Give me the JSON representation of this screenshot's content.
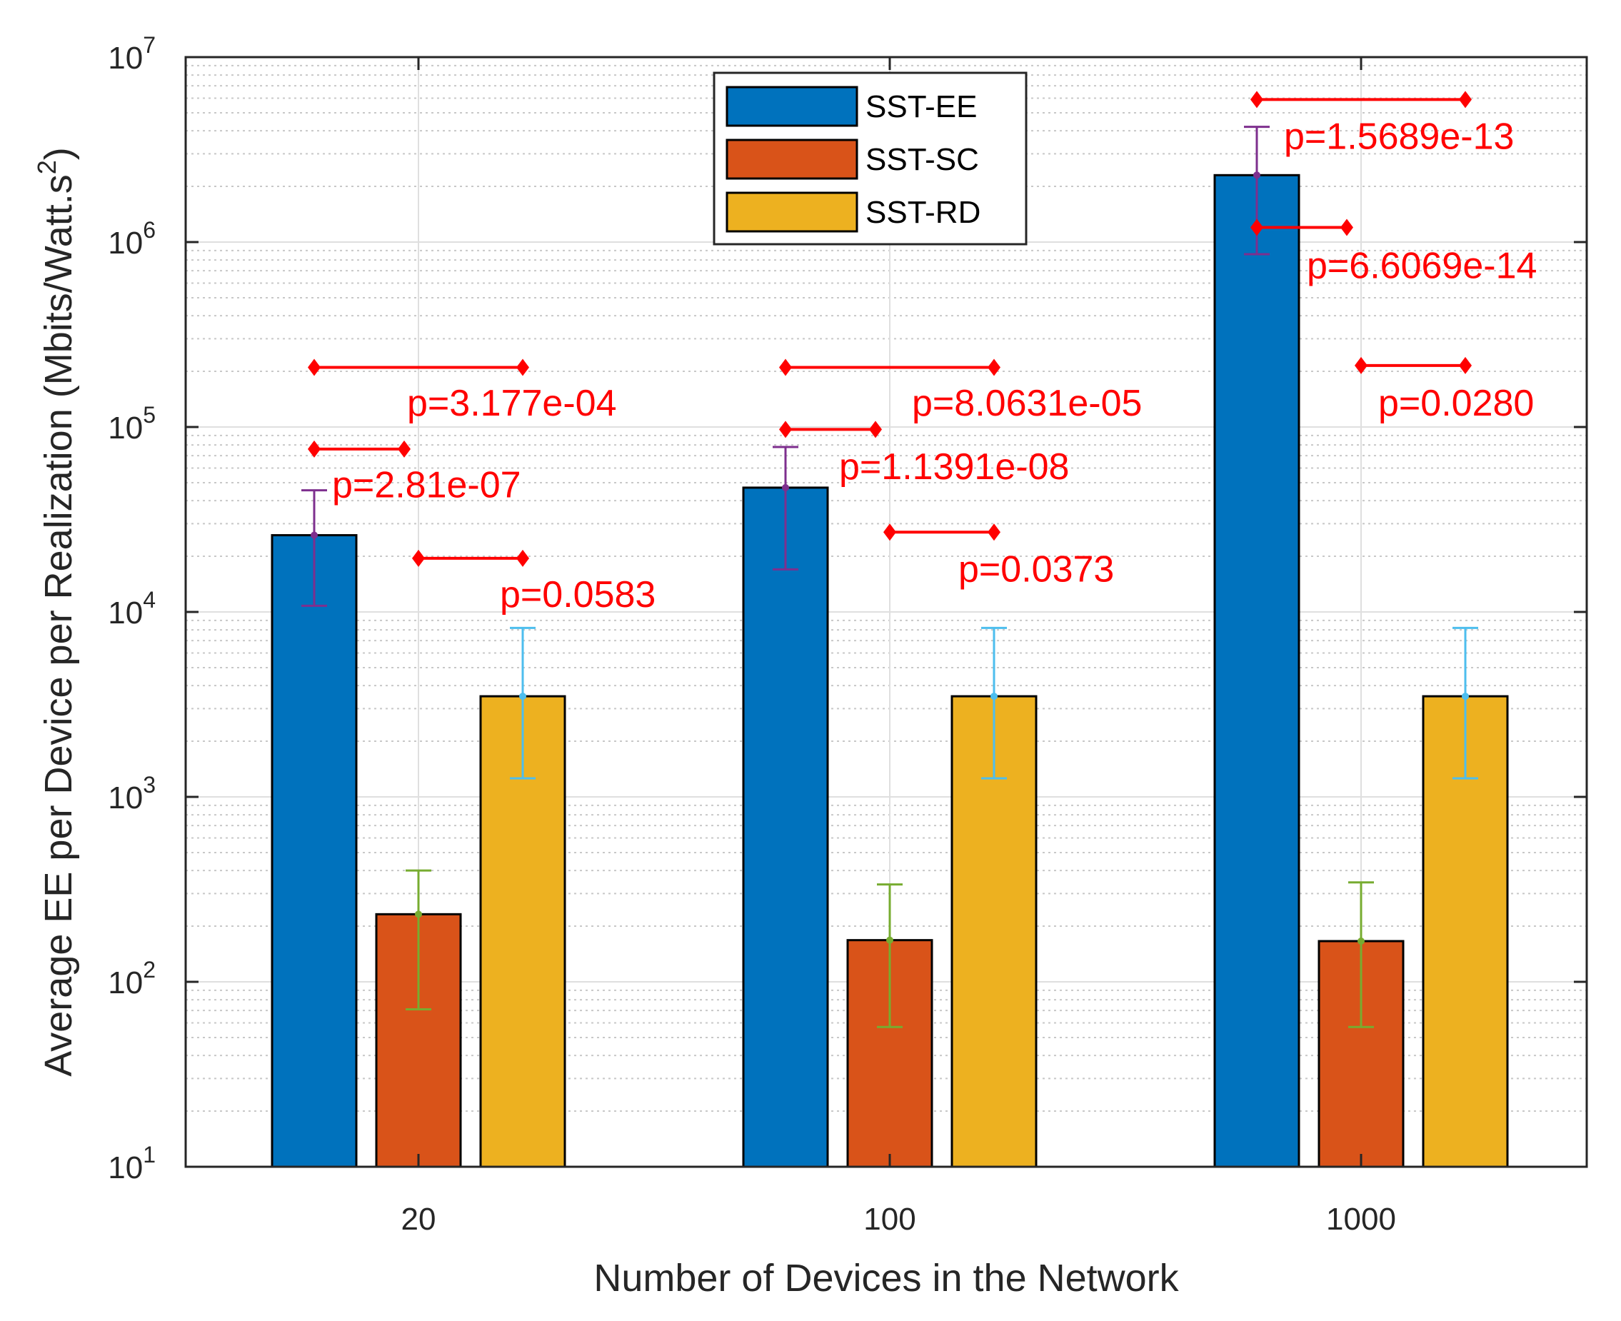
{
  "chart_data": {
    "type": "bar",
    "title": "",
    "xlabel": "Number of Devices in the Network",
    "ylabel": "Average EE per Device per Realization (Mbits/Watt.s",
    "ylabel_superscript": "2",
    "ylabel_close": ")",
    "yscale": "log",
    "ylim": [
      10,
      10000000
    ],
    "y_ticks": [
      {
        "mantissa": "10",
        "exp": "1",
        "value": 10
      },
      {
        "mantissa": "10",
        "exp": "2",
        "value": 100
      },
      {
        "mantissa": "10",
        "exp": "3",
        "value": 1000
      },
      {
        "mantissa": "10",
        "exp": "4",
        "value": 10000
      },
      {
        "mantissa": "10",
        "exp": "5",
        "value": 100000
      },
      {
        "mantissa": "10",
        "exp": "6",
        "value": 1000000
      },
      {
        "mantissa": "10",
        "exp": "7",
        "value": 10000000
      }
    ],
    "categories": [
      "20",
      "100",
      "1000"
    ],
    "legend_position": "top-center",
    "series": [
      {
        "name": "SST-EE",
        "color": "#0072BD",
        "error_color": "#7E2F8E",
        "values": [
          26000,
          47000,
          2300000
        ],
        "err_low": [
          10800,
          17000,
          860000
        ],
        "err_high": [
          45500,
          78000,
          4200000
        ]
      },
      {
        "name": "SST-SC",
        "color": "#D95319",
        "error_color": "#77AC30",
        "values": [
          232,
          168,
          166
        ],
        "err_low": [
          71,
          57,
          57
        ],
        "err_high": [
          400,
          336,
          345
        ]
      },
      {
        "name": "SST-RD",
        "color": "#EDB120",
        "error_color": "#4DBEEE",
        "values": [
          3500,
          3500,
          3500
        ],
        "err_low": [
          1260,
          1260,
          1260
        ],
        "err_high": [
          8200,
          8200,
          8200
        ]
      }
    ],
    "significance": [
      {
        "group": 0,
        "from": 0,
        "to": 2,
        "y": 210000,
        "label": "p=3.177e-04",
        "label_y": 130000
      },
      {
        "group": 0,
        "from": 0,
        "to": 1,
        "y": 76000,
        "label": "p=2.81e-07",
        "label_y": 47000
      },
      {
        "group": 0,
        "from": 1,
        "to": 2,
        "y": 19500,
        "label": "p=0.0583",
        "label_y": 12000
      },
      {
        "group": 1,
        "from": 0,
        "to": 2,
        "y": 210000,
        "label": "p=8.0631e-05",
        "label_y": 130000
      },
      {
        "group": 1,
        "from": 0,
        "to": 1,
        "y": 97000,
        "label": "p=1.1391e-08",
        "label_y": 59000
      },
      {
        "group": 1,
        "from": 1,
        "to": 2,
        "y": 27000,
        "label": "p=0.0373",
        "label_y": 16500
      },
      {
        "group": 2,
        "from": 0,
        "to": 2,
        "y": 5900000,
        "label": "p=1.5689e-13",
        "label_y": 3600000
      },
      {
        "group": 2,
        "from": 0,
        "to": 1,
        "y": 1200000,
        "label": "p=6.6069e-14",
        "label_y": 720000
      },
      {
        "group": 2,
        "from": 1,
        "to": 2,
        "y": 215000,
        "label": "p=0.0280",
        "label_y": 130000
      }
    ],
    "significance_color": "#FF0000",
    "grid": true
  }
}
